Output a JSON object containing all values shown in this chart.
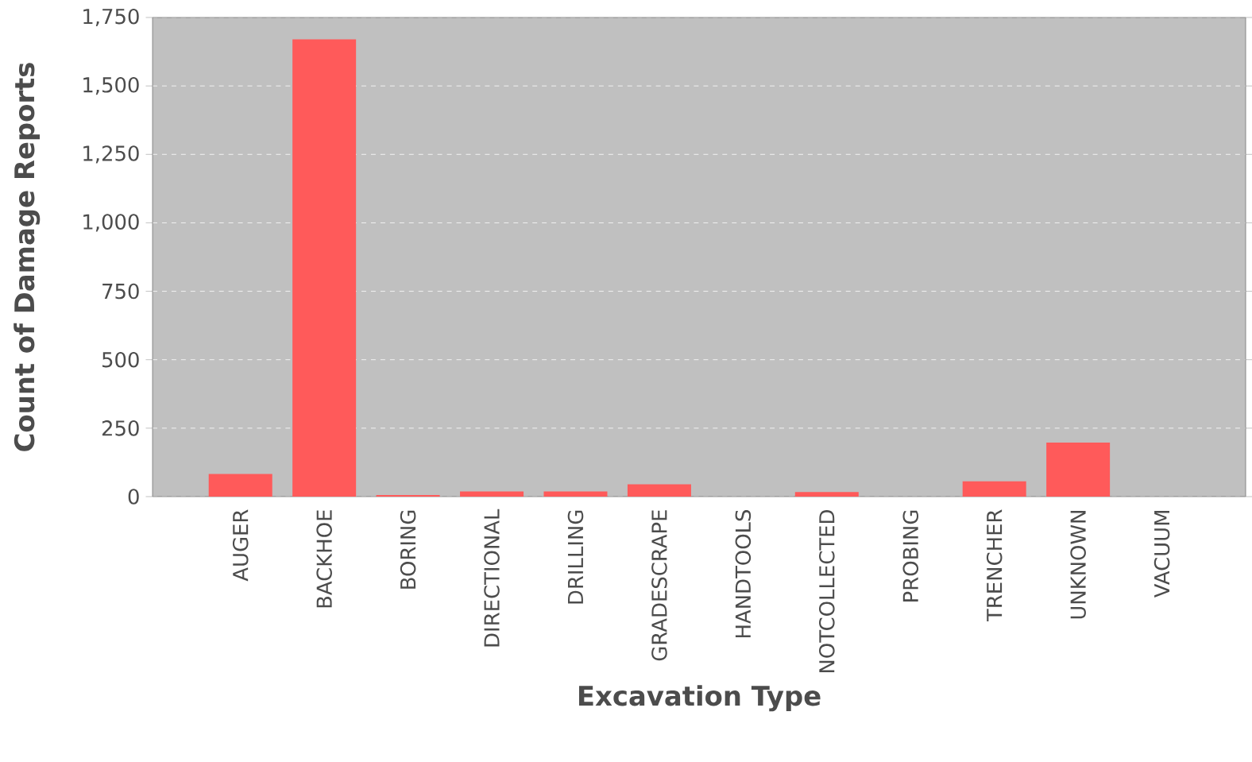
{
  "chart_data": {
    "type": "bar",
    "xlabel": "Excavation Type",
    "ylabel": "Count of Damage Reports",
    "categories": [
      "AUGER",
      "BACKHOE",
      "BORING",
      "DIRECTIONAL",
      "DRILLING",
      "GRADESCRAPE",
      "HANDTOOLS",
      "NOTCOLLECTED",
      "PROBING",
      "TRENCHER",
      "UNKNOWN",
      "VACUUM"
    ],
    "values": [
      83,
      1670,
      6,
      19,
      19,
      45,
      0,
      17,
      0,
      56,
      197,
      0
    ],
    "color": "#ff5a5a",
    "ylim": [
      0,
      1750
    ],
    "yticks": [
      {
        "value": 0,
        "label": "0"
      },
      {
        "value": 250,
        "label": "250"
      },
      {
        "value": 500,
        "label": "500"
      },
      {
        "value": 750,
        "label": "750"
      },
      {
        "value": 1000,
        "label": "1,000"
      },
      {
        "value": 1250,
        "label": "1,250"
      },
      {
        "value": 1500,
        "label": "1,500"
      },
      {
        "value": 1750,
        "label": "1,750"
      }
    ],
    "grid": "y"
  }
}
